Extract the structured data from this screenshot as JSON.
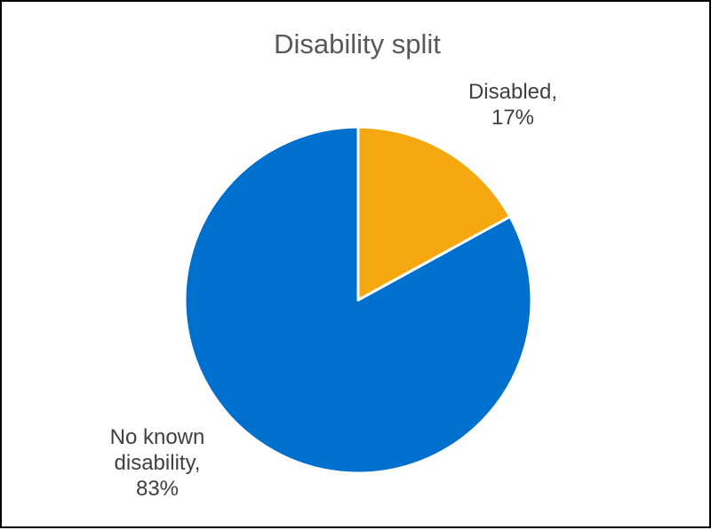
{
  "chart_data": {
    "type": "pie",
    "title": "Disability split",
    "categories": [
      "Disabled",
      "No known disability"
    ],
    "values": [
      17,
      83
    ],
    "unit": "%",
    "colors": [
      "#F5A70F",
      "#0070CE"
    ],
    "legend": "none",
    "data_labels": [
      {
        "category": "Disabled,",
        "value": "17%"
      },
      {
        "category": "No known disability,",
        "value": "83%"
      }
    ]
  }
}
